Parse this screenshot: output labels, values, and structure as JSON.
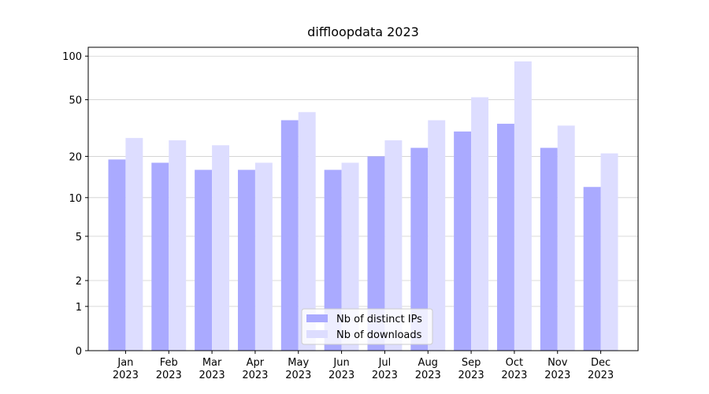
{
  "chart_data": {
    "type": "bar",
    "title": "diffloopdata 2023",
    "categories": [
      "Jan\n2023",
      "Feb\n2023",
      "Mar\n2023",
      "Apr\n2023",
      "May\n2023",
      "Jun\n2023",
      "Jul\n2023",
      "Aug\n2023",
      "Sep\n2023",
      "Oct\n2023",
      "Nov\n2023",
      "Dec\n2023"
    ],
    "series": [
      {
        "name": "Nb of distinct IPs",
        "color": "#aaaaff",
        "values": [
          19,
          18,
          16,
          16,
          36,
          16,
          20,
          23,
          30,
          34,
          23,
          12
        ]
      },
      {
        "name": "Nb of downloads",
        "color": "#ddddff",
        "values": [
          27,
          26,
          24,
          18,
          41,
          18,
          26,
          36,
          52,
          92,
          33,
          21
        ]
      }
    ],
    "yscale": "log1p",
    "ylim": [
      0,
      115
    ],
    "yticks": [
      0,
      1,
      2,
      5,
      10,
      20,
      50,
      100
    ],
    "grid": true,
    "legend": "lower center"
  }
}
